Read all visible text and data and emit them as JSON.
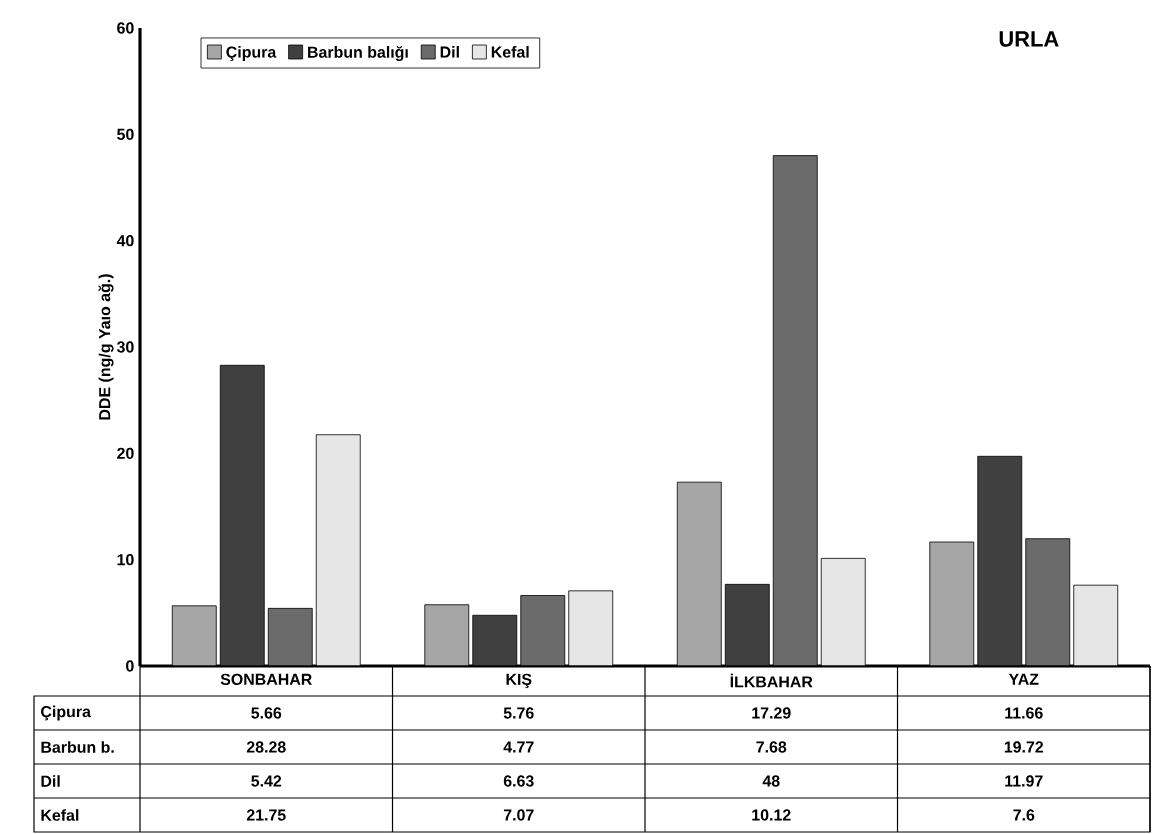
{
  "chart_data": {
    "type": "bar",
    "title": "URLA",
    "ylabel": "DDE (ng/g Yaıo ağ.)",
    "categories": [
      "SONBAHAR",
      "KIŞ",
      "İLKBAHAR",
      "YAZ"
    ],
    "series": [
      {
        "name": "Çipura",
        "color": "#a6a6a6",
        "values": [
          5.66,
          5.76,
          17.29,
          11.66
        ]
      },
      {
        "name": "Barbun balığı",
        "color": "#404040",
        "values": [
          28.28,
          4.77,
          7.68,
          19.72
        ]
      },
      {
        "name": "Dil",
        "color": "#6b6b6b",
        "values": [
          5.42,
          6.63,
          48,
          11.97
        ]
      },
      {
        "name": "Kefal",
        "color": "#e6e6e6",
        "values": [
          21.75,
          7.07,
          10.12,
          7.6
        ]
      }
    ],
    "annotations": [
      "Çipura",
      "Barbun b.",
      "Dil",
      "Kefal"
    ],
    "ylim": [
      0,
      60
    ],
    "yticks": [
      0,
      10,
      20,
      30,
      40,
      50,
      60
    ],
    "data_labels": true,
    "legend": "top left",
    "grid": false
  }
}
